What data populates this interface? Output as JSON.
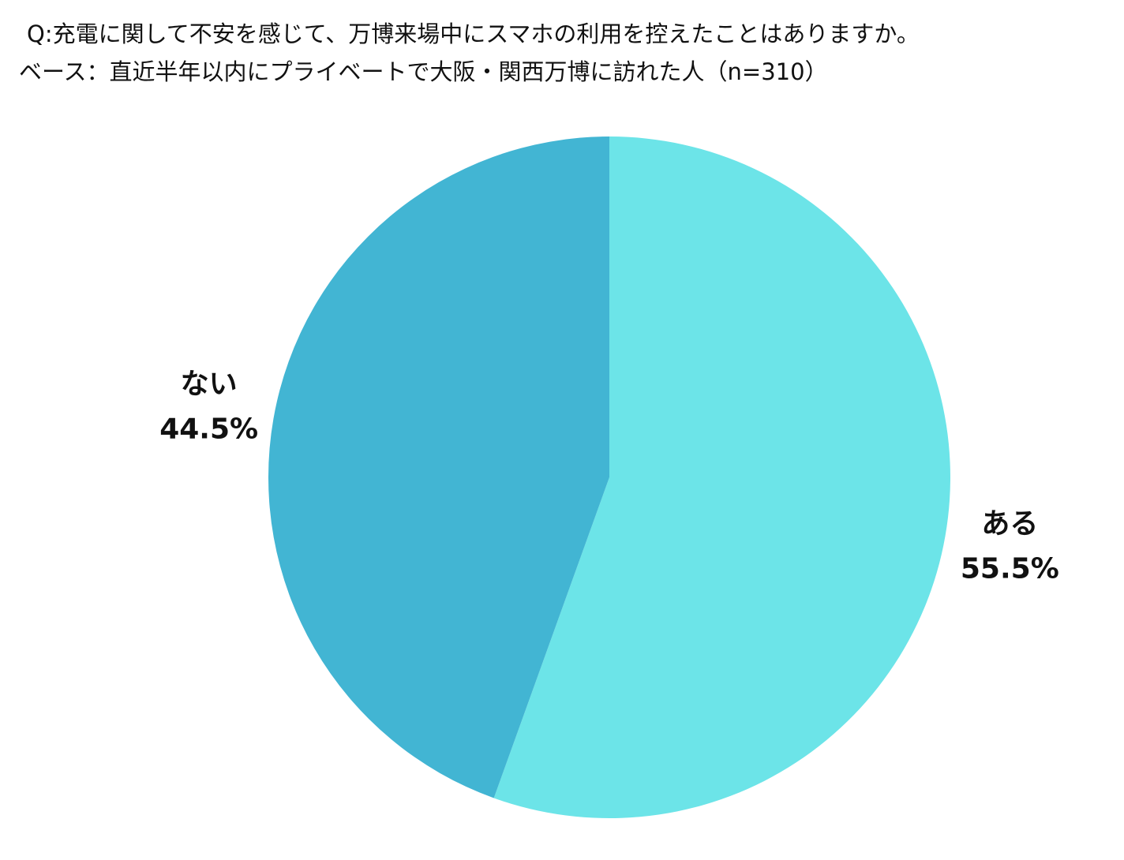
{
  "chart_data": {
    "type": "pie",
    "title": "Q:充電に関して不安を感じて、万博来場中にスマホの利用を控えたことはありますか。",
    "subtitle": "ベース：直近半年以内にプライベートで大阪・関西万博に訪れた人（n=310）",
    "categories": [
      "ある",
      "ない"
    ],
    "values": [
      55.5,
      44.5
    ],
    "value_labels": [
      "55.5%",
      "44.5%"
    ],
    "colors": [
      "#6ce4e8",
      "#42b5d3"
    ]
  }
}
